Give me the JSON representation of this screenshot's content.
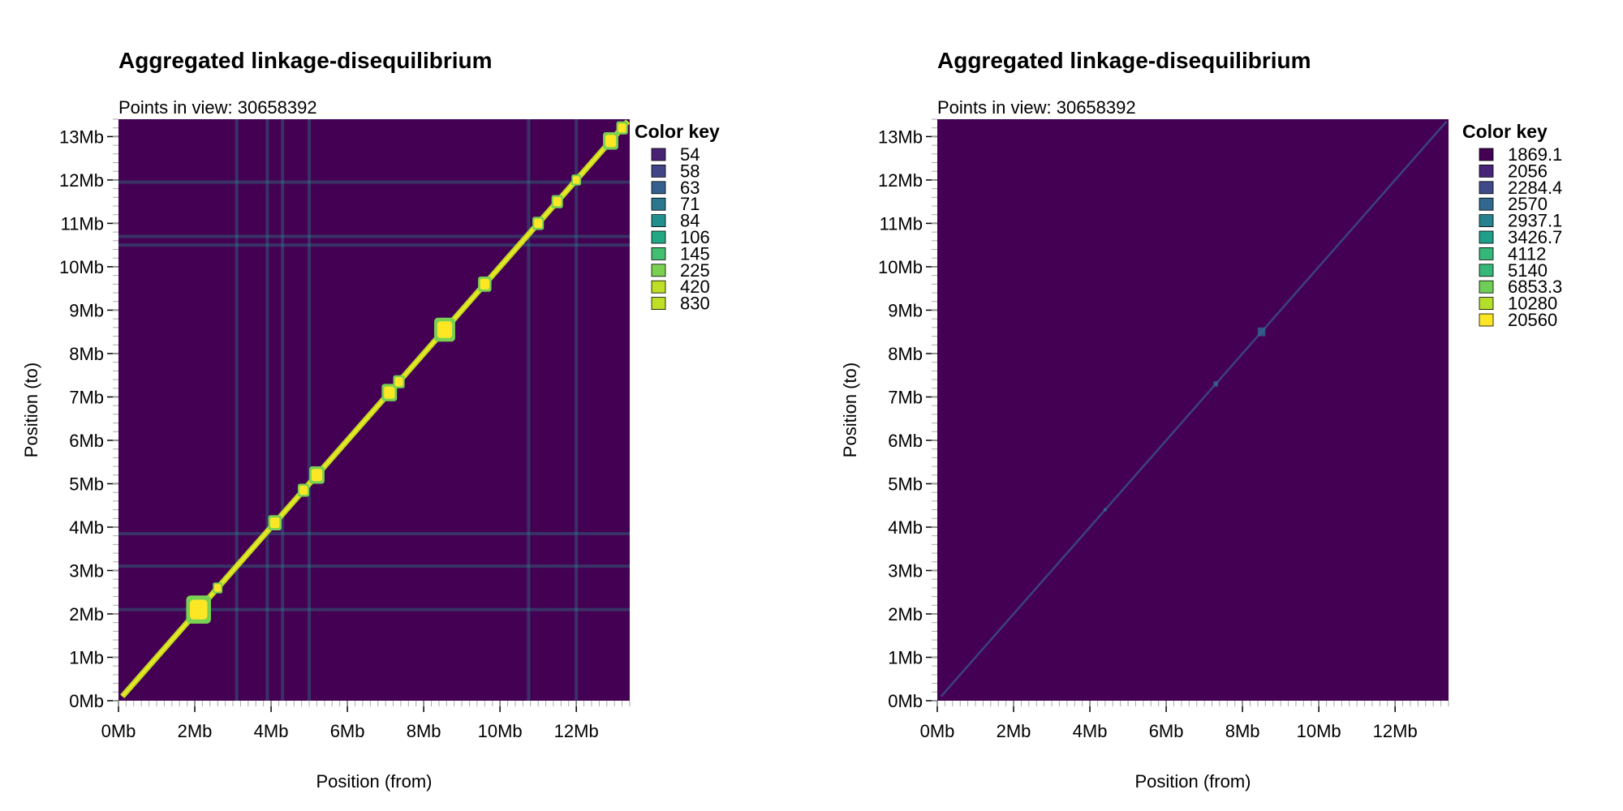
{
  "chart_data": [
    {
      "type": "heatmap",
      "title": "Aggregated linkage-disequilibrium",
      "subtitle": "Points in view: 30658392",
      "xlabel": "Position (from)",
      "ylabel": "Position (to)",
      "xlim": [
        0,
        13.4
      ],
      "ylim": [
        0,
        13.4
      ],
      "x_ticks": [
        {
          "value": 0,
          "label": "0Mb"
        },
        {
          "value": 2,
          "label": "2Mb"
        },
        {
          "value": 4,
          "label": "4Mb"
        },
        {
          "value": 6,
          "label": "6Mb"
        },
        {
          "value": 8,
          "label": "8Mb"
        },
        {
          "value": 10,
          "label": "10Mb"
        },
        {
          "value": 12,
          "label": "12Mb"
        }
      ],
      "y_ticks": [
        {
          "value": 0,
          "label": "0Mb"
        },
        {
          "value": 1,
          "label": "1Mb"
        },
        {
          "value": 2,
          "label": "2Mb"
        },
        {
          "value": 3,
          "label": "3Mb"
        },
        {
          "value": 4,
          "label": "4Mb"
        },
        {
          "value": 5,
          "label": "5Mb"
        },
        {
          "value": 6,
          "label": "6Mb"
        },
        {
          "value": 7,
          "label": "7Mb"
        },
        {
          "value": 8,
          "label": "8Mb"
        },
        {
          "value": 9,
          "label": "9Mb"
        },
        {
          "value": 10,
          "label": "10Mb"
        },
        {
          "value": 11,
          "label": "11Mb"
        },
        {
          "value": 12,
          "label": "12Mb"
        },
        {
          "value": 13,
          "label": "13Mb"
        }
      ],
      "background_color": "#440154",
      "color_key": {
        "title": "Color key",
        "entries": [
          {
            "label": "54",
            "color": "#482374"
          },
          {
            "label": "58",
            "color": "#414487"
          },
          {
            "label": "63",
            "color": "#355f8d"
          },
          {
            "label": "71",
            "color": "#2a788e"
          },
          {
            "label": "84",
            "color": "#21908c"
          },
          {
            "label": "106",
            "color": "#22a884"
          },
          {
            "label": "145",
            "color": "#43bf71"
          },
          {
            "label": "225",
            "color": "#7ad151"
          },
          {
            "label": "420",
            "color": "#bddf26"
          },
          {
            "label": "830",
            "color": "#bddf26"
          }
        ]
      },
      "diagonal": {
        "from": 0.1,
        "to": 13.35,
        "color": "#c2df23"
      },
      "blocks": [
        {
          "center": 2.1,
          "size": 0.65
        },
        {
          "center": 8.55,
          "size": 0.55
        },
        {
          "center": 5.2,
          "size": 0.4
        },
        {
          "center": 7.1,
          "size": 0.4
        },
        {
          "center": 4.1,
          "size": 0.35
        },
        {
          "center": 4.85,
          "size": 0.3
        },
        {
          "center": 9.6,
          "size": 0.35
        },
        {
          "center": 11.0,
          "size": 0.3
        },
        {
          "center": 11.5,
          "size": 0.3
        },
        {
          "center": 12.9,
          "size": 0.4
        },
        {
          "center": 13.2,
          "size": 0.3
        },
        {
          "center": 7.35,
          "size": 0.3
        },
        {
          "center": 2.6,
          "size": 0.25
        },
        {
          "center": 12.0,
          "size": 0.25
        }
      ],
      "bands_x": [
        3.1,
        3.9,
        4.3,
        5.0,
        10.75,
        12.0
      ],
      "bands_y": [
        11.95,
        10.7,
        10.5,
        3.85,
        3.1,
        2.1
      ]
    },
    {
      "type": "heatmap",
      "title": "Aggregated linkage-disequilibrium",
      "subtitle": "Points in view: 30658392",
      "xlabel": "Position (from)",
      "ylabel": "Position (to)",
      "xlim": [
        0,
        13.4
      ],
      "ylim": [
        0,
        13.4
      ],
      "x_ticks": [
        {
          "value": 0,
          "label": "0Mb"
        },
        {
          "value": 2,
          "label": "2Mb"
        },
        {
          "value": 4,
          "label": "4Mb"
        },
        {
          "value": 6,
          "label": "6Mb"
        },
        {
          "value": 8,
          "label": "8Mb"
        },
        {
          "value": 10,
          "label": "10Mb"
        },
        {
          "value": 12,
          "label": "12Mb"
        }
      ],
      "y_ticks": [
        {
          "value": 0,
          "label": "0Mb"
        },
        {
          "value": 1,
          "label": "1Mb"
        },
        {
          "value": 2,
          "label": "2Mb"
        },
        {
          "value": 3,
          "label": "3Mb"
        },
        {
          "value": 4,
          "label": "4Mb"
        },
        {
          "value": 5,
          "label": "5Mb"
        },
        {
          "value": 6,
          "label": "6Mb"
        },
        {
          "value": 7,
          "label": "7Mb"
        },
        {
          "value": 8,
          "label": "8Mb"
        },
        {
          "value": 9,
          "label": "9Mb"
        },
        {
          "value": 10,
          "label": "10Mb"
        },
        {
          "value": 11,
          "label": "11Mb"
        },
        {
          "value": 12,
          "label": "12Mb"
        },
        {
          "value": 13,
          "label": "13Mb"
        }
      ],
      "background_color": "#440154",
      "color_key": {
        "title": "Color key",
        "entries": [
          {
            "label": "1869.1",
            "color": "#440154"
          },
          {
            "label": "2056",
            "color": "#482576"
          },
          {
            "label": "2284.4",
            "color": "#3e4a89"
          },
          {
            "label": "2570",
            "color": "#31688e"
          },
          {
            "label": "2937.1",
            "color": "#26828e"
          },
          {
            "label": "3426.7",
            "color": "#1f9e89"
          },
          {
            "label": "4112",
            "color": "#35b779"
          },
          {
            "label": "5140",
            "color": "#35b779"
          },
          {
            "label": "6853.3",
            "color": "#6ece58"
          },
          {
            "label": "10280",
            "color": "#b5de2b"
          },
          {
            "label": "20560",
            "color": "#fde725"
          }
        ]
      },
      "diagonal": {
        "from": 0.1,
        "to": 13.35,
        "color": "#3b528b"
      },
      "blocks": [
        {
          "center": 8.5,
          "size": 0.2
        },
        {
          "center": 7.3,
          "size": 0.12
        },
        {
          "center": 4.4,
          "size": 0.08
        }
      ],
      "bands_x": [],
      "bands_y": []
    }
  ]
}
